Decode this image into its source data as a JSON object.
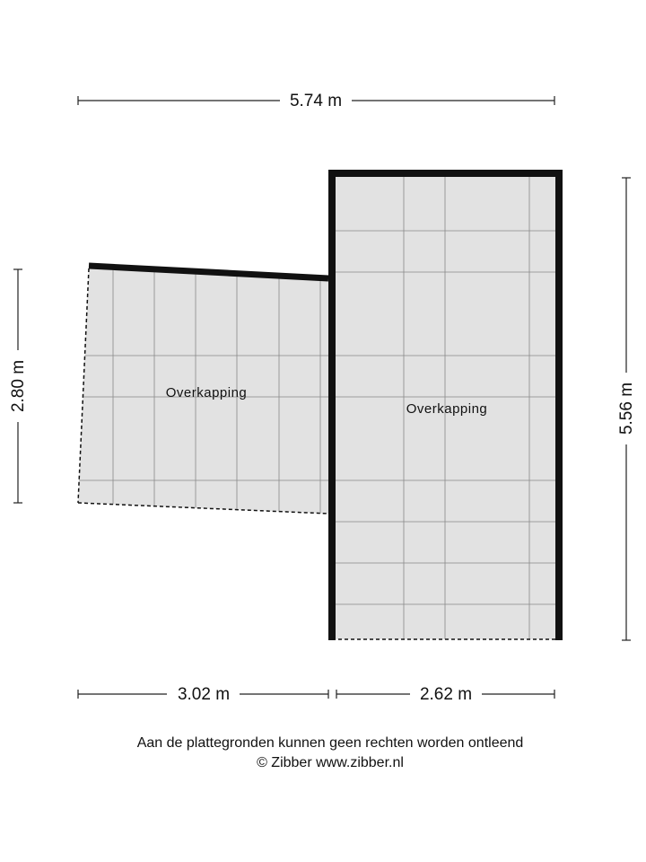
{
  "dimensions": {
    "top": "5.74 m",
    "right": "5.56 m",
    "left": "2.80 m",
    "bottom_left": "3.02 m",
    "bottom_right": "2.62 m"
  },
  "rooms": [
    {
      "label": "Overkapping"
    },
    {
      "label": "Overkapping"
    }
  ],
  "footer": {
    "disclaimer": "Aan de plattegronden kunnen geen rechten worden ontleend",
    "copyright": "© Zibber www.zibber.nl"
  }
}
